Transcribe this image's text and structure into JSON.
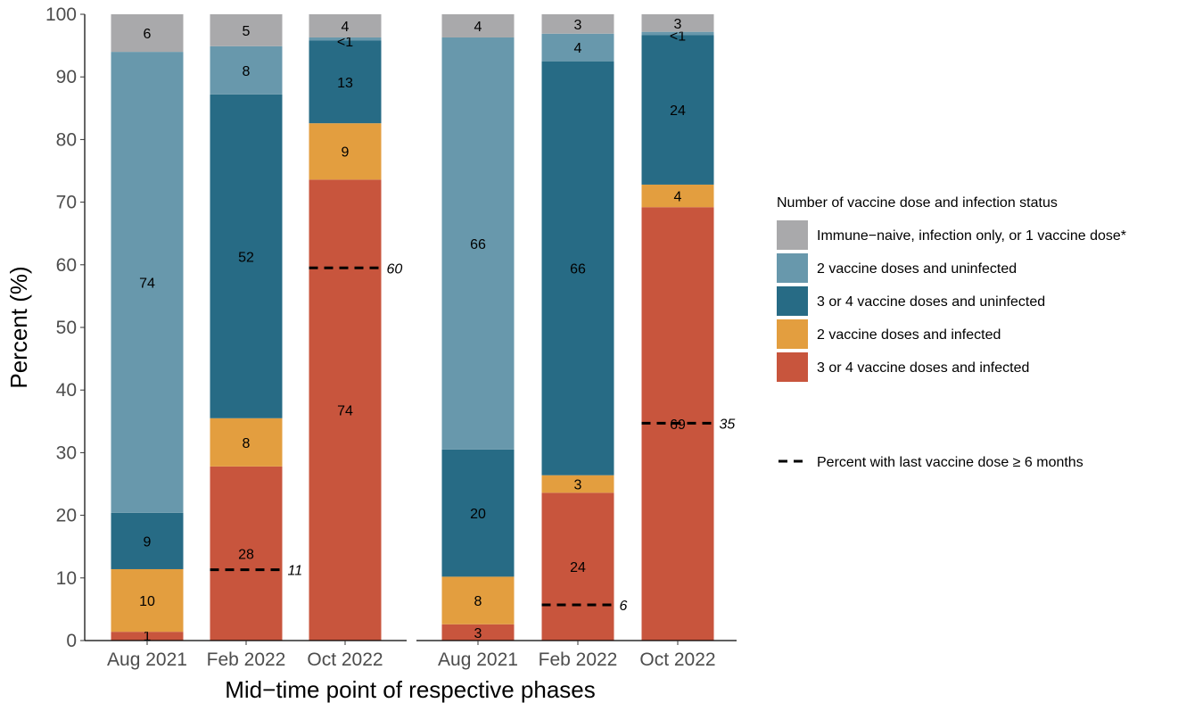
{
  "chart_data": {
    "type": "bar",
    "stacked": true,
    "xlabel": "Mid−time point of respective phases",
    "ylabel": "Percent (%)",
    "ylim": [
      0,
      100
    ],
    "yticks": [
      0,
      10,
      20,
      30,
      40,
      50,
      60,
      70,
      80,
      90,
      100
    ],
    "grid": false,
    "legend": {
      "title": "Number of vaccine dose and infection status",
      "position": "right",
      "reference_label": "Percent with last vaccine dose ≥ 6 months"
    },
    "series": [
      {
        "name": "3 or 4 vaccine doses and infected",
        "color": "#C8553D"
      },
      {
        "name": "2 vaccine doses and infected",
        "color": "#E39E3F"
      },
      {
        "name": "3 or 4 vaccine doses and uninfected",
        "color": "#276B85"
      },
      {
        "name": "2 vaccine doses and uninfected",
        "color": "#6898AC"
      },
      {
        "name": "Immune−naive, infection only, or 1 vaccine dose*",
        "color": "#A9A9AB"
      }
    ],
    "legend_order": [
      4,
      3,
      2,
      1,
      0
    ],
    "panels": [
      {
        "categories": [
          "Aug 2021",
          "Feb 2022",
          "Oct 2022"
        ],
        "bars": [
          {
            "values": [
              1.4,
              10.0,
              9.0,
              73.6,
              6.0
            ],
            "labels": [
              "1",
              "10",
              "9",
              "74",
              "6"
            ],
            "ref": null,
            "ref_label": ""
          },
          {
            "values": [
              27.8,
              7.7,
              51.7,
              7.7,
              5.1
            ],
            "labels": [
              "28",
              "8",
              "52",
              "8",
              "5"
            ],
            "ref": 11.3,
            "ref_label": "11"
          },
          {
            "values": [
              73.6,
              9.0,
              13.2,
              0.5,
              3.7
            ],
            "labels": [
              "74",
              "9",
              "13",
              "<1",
              "4"
            ],
            "ref": 59.5,
            "ref_label": "60"
          }
        ]
      },
      {
        "categories": [
          "Aug 2021",
          "Feb 2022",
          "Oct 2022"
        ],
        "bars": [
          {
            "values": [
              2.6,
              7.6,
              20.3,
              65.8,
              3.7
            ],
            "labels": [
              "3",
              "8",
              "20",
              "66",
              "4"
            ],
            "ref": null,
            "ref_label": ""
          },
          {
            "values": [
              23.6,
              2.8,
              66.1,
              4.4,
              3.1
            ],
            "labels": [
              "24",
              "3",
              "66",
              "4",
              "3"
            ],
            "ref": 5.7,
            "ref_label": "6"
          },
          {
            "values": [
              69.2,
              3.6,
              23.9,
              0.5,
              2.8
            ],
            "labels": [
              "69",
              "4",
              "24",
              "<1",
              "3"
            ],
            "ref": 34.7,
            "ref_label": "35"
          }
        ]
      }
    ]
  }
}
